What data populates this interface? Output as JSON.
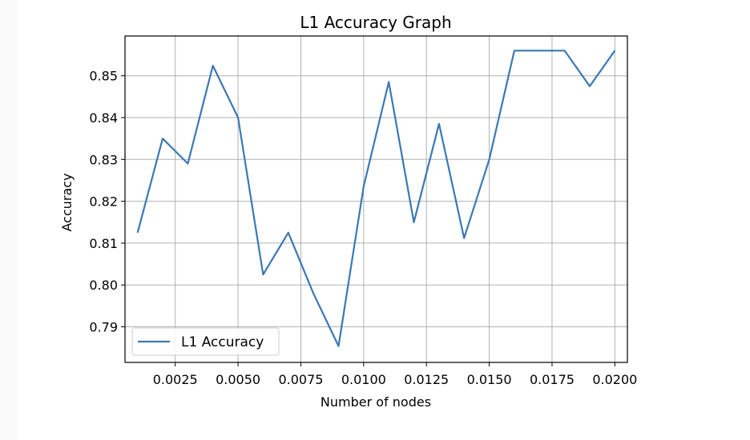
{
  "chart_data": {
    "type": "line",
    "title": "L1 Accuracy Graph",
    "xlabel": "Number of nodes",
    "ylabel": "Accuracy",
    "xlim": [
      0.0005,
      0.0205
    ],
    "ylim": [
      0.7815,
      0.8595
    ],
    "xticks": [
      "0.0025",
      "0.0050",
      "0.0075",
      "0.0100",
      "0.0125",
      "0.0150",
      "0.0175",
      "0.0200"
    ],
    "yticks": [
      "0.79",
      "0.80",
      "0.81",
      "0.82",
      "0.83",
      "0.84",
      "0.85"
    ],
    "grid": true,
    "legend_position": "lower-left",
    "series": [
      {
        "name": "L1 Accuracy",
        "color": "#3b78b4",
        "x": [
          0.001,
          0.002,
          0.003,
          0.004,
          0.005,
          0.006,
          0.007,
          0.008,
          0.009,
          0.01,
          0.011,
          0.012,
          0.013,
          0.014,
          0.015,
          0.016,
          0.017,
          0.018,
          0.019,
          0.02
        ],
        "y": [
          0.8125,
          0.835,
          0.829,
          0.8524,
          0.84,
          0.8025,
          0.8125,
          0.798,
          0.7854,
          0.8235,
          0.8485,
          0.815,
          0.8385,
          0.8112,
          0.83,
          0.856,
          0.856,
          0.856,
          0.8475,
          0.856
        ]
      }
    ]
  }
}
